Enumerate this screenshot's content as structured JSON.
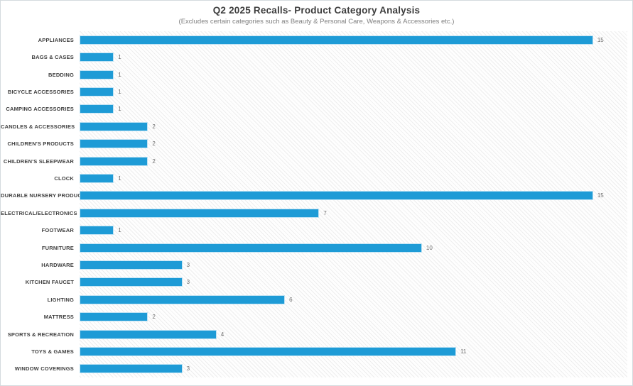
{
  "header": {
    "title": "Q2 2025 Recalls- Product Category Analysis",
    "subtitle": "(Excludes certain categories such as Beauty & Personal Care, Weapons & Accessories etc.)"
  },
  "colors": {
    "bar": "#1e9bd6",
    "bar_edge": "#bfe2f3",
    "label": "#404040",
    "value": "#6e6e6e",
    "title": "#3d3d3d",
    "subtitle": "#7f7f7f",
    "border": "#d4dade",
    "plot_background": "#f6f6f6"
  },
  "chart_data": {
    "type": "bar",
    "orientation": "horizontal",
    "title": "Q2 2025 Recalls- Product Category Analysis",
    "subtitle": "(Excludes certain categories such as Beauty & Personal Care, Weapons & Accessories etc.)",
    "categories": [
      "APPLIANCES",
      "BAGS & CASES",
      "BEDDING",
      "BICYCLE ACCESSORIES",
      "CAMPING ACCESSORIES",
      "CANDLES & ACCESSORIES",
      "CHILDREN'S PRODUCTS",
      "CHILDREN'S SLEEPWEAR",
      "CLOCK",
      "DURABLE NURSERY PRODUCT",
      "ELECTRICAL/ELECTRONICS",
      "FOOTWEAR",
      "FURNITURE",
      "HARDWARE",
      "KITCHEN FAUCET",
      "LIGHTING",
      "MATTRESS",
      "SPORTS & RECREATION",
      "TOYS & GAMES",
      "WINDOW COVERINGS"
    ],
    "values": [
      15,
      1,
      1,
      1,
      1,
      2,
      2,
      2,
      1,
      15,
      7,
      1,
      10,
      3,
      3,
      6,
      2,
      4,
      11,
      3
    ],
    "xlabel": "",
    "ylabel": "",
    "xlim": [
      0,
      16
    ],
    "grid": false,
    "legend": false,
    "data_labels": true
  }
}
